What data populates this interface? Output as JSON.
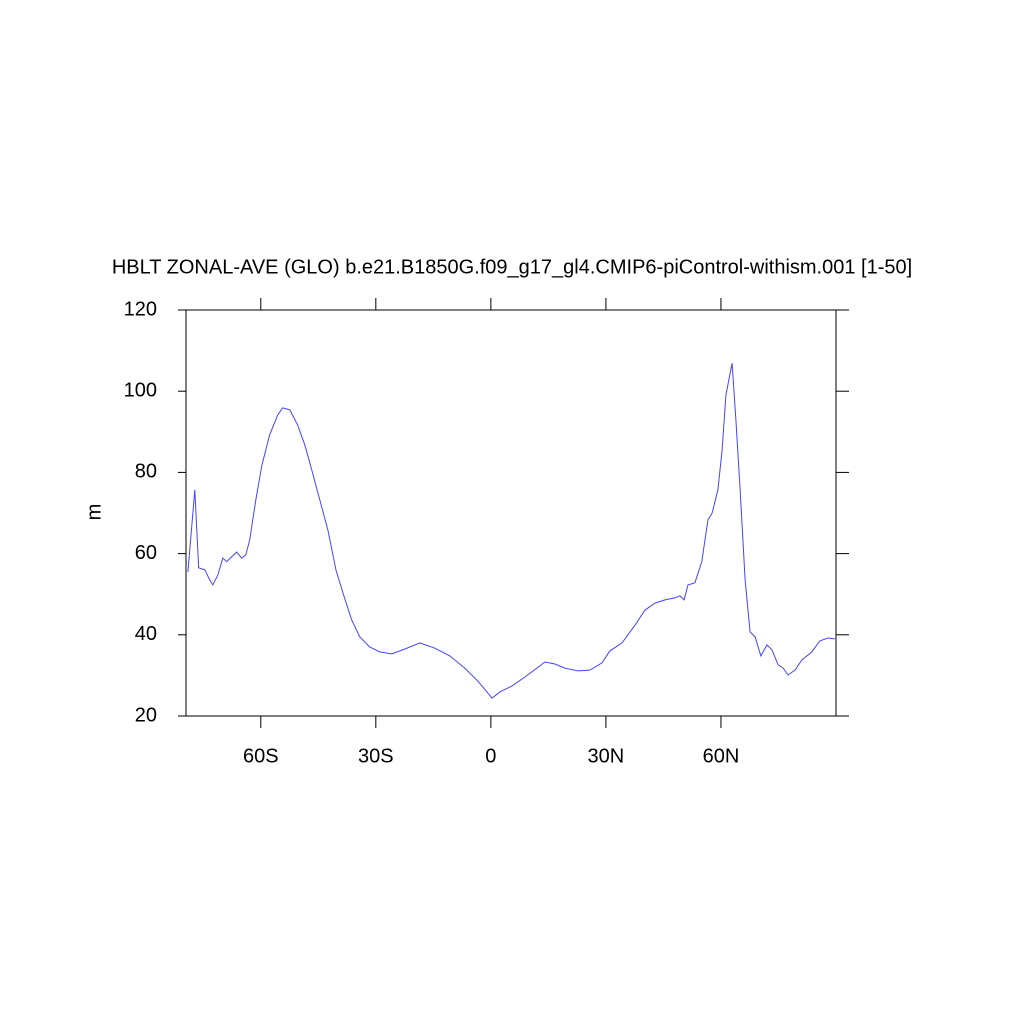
{
  "chart_data": {
    "type": "line",
    "title": "HBLT ZONAL-AVE (GLO) b.e21.B1850G.f09_g17_gl4.CMIP6-piControl-withism.001 [1-50]",
    "ylabel": "m",
    "x": [
      -79.0,
      -77.2,
      -76.2,
      -74.6,
      -73.3,
      -72.5,
      -71.2,
      -69.9,
      -68.9,
      -67.6,
      -66.3,
      -65.0,
      -63.9,
      -62.9,
      -61.3,
      -59.7,
      -57.7,
      -55.6,
      -54.3,
      -52.4,
      -50.4,
      -48.5,
      -46.7,
      -44.6,
      -42.5,
      -40.4,
      -38.4,
      -36.3,
      -34.2,
      -31.6,
      -29.0,
      -25.8,
      -22.4,
      -18.5,
      -14.6,
      -10.7,
      -6.8,
      -3.4,
      -1.0,
      0.3,
      2.3,
      5.5,
      8.9,
      12.0,
      14.1,
      16.7,
      19.3,
      22.7,
      25.8,
      29.0,
      31.0,
      34.2,
      37.6,
      40.2,
      42.8,
      45.4,
      48.0,
      49.3,
      50.4,
      51.4,
      53.2,
      55.0,
      56.6,
      57.7,
      59.2,
      60.3,
      61.3,
      62.9,
      63.9,
      65.0,
      66.3,
      67.6,
      68.9,
      70.4,
      72.0,
      73.3,
      74.9,
      76.2,
      77.5,
      79.3,
      81.1,
      83.7,
      85.8,
      87.9,
      89.7
    ],
    "series": [
      {
        "name": "HBLT",
        "color": "#4444ff",
        "values": [
          55.5,
          75.7,
          56.5,
          56.0,
          53.5,
          52.3,
          54.7,
          58.9,
          58.0,
          59.2,
          60.4,
          58.9,
          59.7,
          63.3,
          73.2,
          81.8,
          89.2,
          94.1,
          95.9,
          95.4,
          91.7,
          86.7,
          80.6,
          73.2,
          65.8,
          56.0,
          49.8,
          43.7,
          39.5,
          37.0,
          35.8,
          35.3,
          36.5,
          38.0,
          36.7,
          34.8,
          31.8,
          28.6,
          25.9,
          24.4,
          25.9,
          27.4,
          29.6,
          31.8,
          33.3,
          32.8,
          31.8,
          31.1,
          31.3,
          33.1,
          36.0,
          38.0,
          42.4,
          46.1,
          47.8,
          48.6,
          49.1,
          49.6,
          48.6,
          52.3,
          52.8,
          58.0,
          68.3,
          70.0,
          75.7,
          85.5,
          99.1,
          106.9,
          92.9,
          75.7,
          53.5,
          40.7,
          39.5,
          34.8,
          37.5,
          36.3,
          32.6,
          31.8,
          30.1,
          31.3,
          33.8,
          35.8,
          38.5,
          39.2,
          39.0
        ]
      }
    ],
    "xlim": [
      -79.5,
      90
    ],
    "xticks": [
      {
        "value": -60,
        "label": "60S"
      },
      {
        "value": -30,
        "label": "30S"
      },
      0,
      {
        "value": 30,
        "label": "30N"
      },
      {
        "value": 60,
        "label": "60N"
      }
    ],
    "ylim": [
      20,
      120
    ],
    "yticks": [
      20,
      40,
      60,
      80,
      100,
      120
    ]
  }
}
